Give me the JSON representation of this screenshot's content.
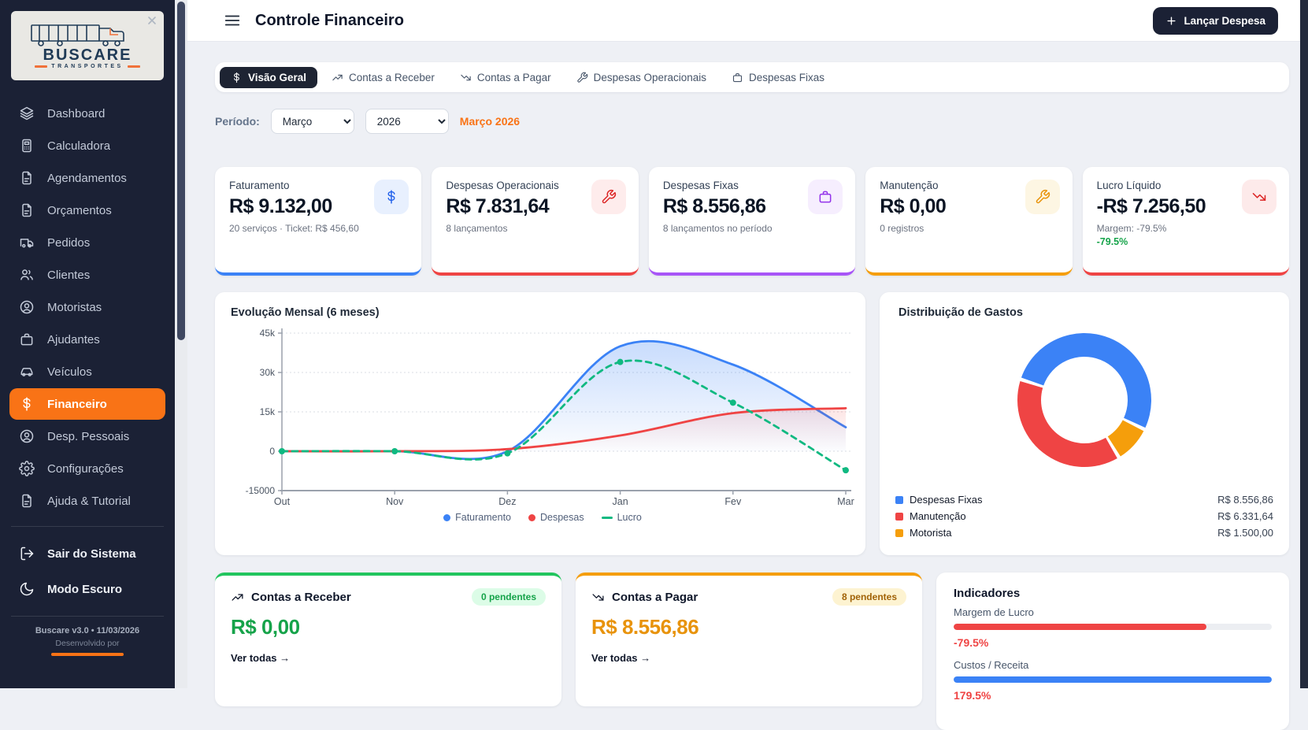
{
  "app": {
    "title": "Controle Financeiro",
    "action_button": "Lançar Despesa"
  },
  "sidebar": {
    "logo_title": "BUSCARE",
    "logo_subtitle": "TRANSPORTES",
    "items": [
      {
        "label": "Dashboard",
        "icon": "layers"
      },
      {
        "label": "Calculadora",
        "icon": "calculator"
      },
      {
        "label": "Agendamentos",
        "icon": "file"
      },
      {
        "label": "Orçamentos",
        "icon": "file"
      },
      {
        "label": "Pedidos",
        "icon": "van"
      },
      {
        "label": "Clientes",
        "icon": "users"
      },
      {
        "label": "Motoristas",
        "icon": "user-circle"
      },
      {
        "label": "Ajudantes",
        "icon": "briefcase"
      },
      {
        "label": "Veículos",
        "icon": "car"
      },
      {
        "label": "Financeiro",
        "icon": "dollar",
        "active": true
      },
      {
        "label": "Desp. Pessoais",
        "icon": "user-circle"
      },
      {
        "label": "Configurações",
        "icon": "gear"
      },
      {
        "label": "Ajuda & Tutorial",
        "icon": "file"
      }
    ],
    "footer_items": [
      {
        "label": "Sair do Sistema",
        "icon": "logout"
      },
      {
        "label": "Modo Escuro",
        "icon": "moon"
      }
    ],
    "version": "Buscare v3.0 • 11/03/2026",
    "developed_by": "Desenvolvido por"
  },
  "tabs": [
    {
      "label": "Visão Geral",
      "icon": "dollar",
      "active": true
    },
    {
      "label": "Contas a Receber",
      "icon": "trend-up"
    },
    {
      "label": "Contas a Pagar",
      "icon": "trend-down"
    },
    {
      "label": "Despesas Operacionais",
      "icon": "wrench"
    },
    {
      "label": "Despesas Fixas",
      "icon": "briefcase"
    }
  ],
  "period": {
    "label": "Período:",
    "month": "Março",
    "month_options": [
      "Março"
    ],
    "year": "2026",
    "year_options": [
      "2026"
    ],
    "display": "Março 2026"
  },
  "stat_cards": [
    {
      "label": "Faturamento",
      "value": "R$ 9.132,00",
      "sub": "20 serviços · Ticket: R$ 456,60",
      "icon": "dollar",
      "accent": "#3b82f6",
      "icon_bg": "#e8f0fe",
      "icon_color": "#2563eb"
    },
    {
      "label": "Despesas Operacionais",
      "value": "R$ 7.831,64",
      "sub": "8 lançamentos",
      "icon": "wrench",
      "accent": "#ef4444",
      "icon_bg": "#feecec",
      "icon_color": "#dc2626"
    },
    {
      "label": "Despesas Fixas",
      "value": "R$ 8.556,86",
      "sub": "8 lançamentos no período",
      "icon": "briefcase",
      "accent": "#a855f7",
      "icon_bg": "#f6eefe",
      "icon_color": "#9333ea"
    },
    {
      "label": "Manutenção",
      "value": "R$ 0,00",
      "sub": "0 registros",
      "icon": "wrench",
      "accent": "#f59e0b",
      "icon_bg": "#fdf6e3",
      "icon_color": "#e8930c"
    },
    {
      "label": "Lucro Líquido",
      "value": "-R$ 7.256,50",
      "sub": "Margem: -79.5%",
      "sub2": "-79.5%",
      "sub2_color": "#16a34a",
      "icon": "trend-down",
      "accent": "#ef4444",
      "icon_bg": "#fdeaea",
      "icon_color": "#dc2626"
    }
  ],
  "chart_data": [
    {
      "type": "line",
      "title": "Evolução Mensal (6 meses)",
      "categories": [
        "Out",
        "Nov",
        "Dez",
        "Jan",
        "Fev",
        "Mar"
      ],
      "series": [
        {
          "name": "Faturamento",
          "color": "#3b82f6",
          "style": "solid",
          "fill": true,
          "values": [
            0,
            0,
            0,
            40000,
            33000,
            9132
          ]
        },
        {
          "name": "Despesas",
          "color": "#ef4444",
          "style": "solid",
          "fill": true,
          "values": [
            0,
            0,
            800,
            6000,
            14500,
            16388
          ]
        },
        {
          "name": "Lucro",
          "color": "#10b981",
          "style": "dashed",
          "points": true,
          "values": [
            0,
            0,
            -800,
            34000,
            18500,
            -7256
          ]
        }
      ],
      "ylim": [
        -15000,
        45000
      ],
      "yticks": [
        {
          "v": 45000,
          "label": "45k"
        },
        {
          "v": 30000,
          "label": "30k"
        },
        {
          "v": 15000,
          "label": "15k"
        },
        {
          "v": 0,
          "label": "0"
        },
        {
          "v": -15000,
          "label": "-15000"
        }
      ],
      "grid": true,
      "legend_position": "bottom"
    },
    {
      "type": "pie",
      "title": "Distribuição de Gastos",
      "slices": [
        {
          "label": "Despesas Fixas",
          "value": 8556.86,
          "display": "R$ 8.556,86",
          "color": "#3b82f6"
        },
        {
          "label": "Manutenção",
          "value": 6331.64,
          "display": "R$ 6.331,64",
          "color": "#ef4444"
        },
        {
          "label": "Motorista",
          "value": 1500.0,
          "display": "R$ 1.500,00",
          "color": "#f59e0b"
        }
      ],
      "donut": true,
      "start_angle": 288,
      "clockwise_order": [
        0,
        2,
        1
      ],
      "legend_position": "bottom-list"
    }
  ],
  "accounts": [
    {
      "title": "Contas a Receber",
      "icon": "trend-up",
      "badge": "0 pendentes",
      "badge_bg": "#dcfce7",
      "badge_color": "#16a34a",
      "value": "R$ 0,00",
      "value_color": "#16a34a",
      "link": "Ver todas →",
      "accent": "#22c55e"
    },
    {
      "title": "Contas a Pagar",
      "icon": "trend-down",
      "badge": "8 pendentes",
      "badge_bg": "#fdf3d1",
      "badge_color": "#a16207",
      "value": "R$ 8.556,86",
      "value_color": "#e8930c",
      "link": "Ver todas →",
      "accent": "#f59e0b"
    }
  ],
  "indicators": {
    "title": "Indicadores",
    "rows": [
      {
        "label": "Margem de Lucro",
        "value": "-79.5%",
        "pct": 79.5,
        "bar_color": "#ef4444",
        "value_color": "#ef4444"
      },
      {
        "label": "Custos / Receita",
        "value": "179.5%",
        "pct": 100,
        "bar_color": "#3b82f6",
        "value_color": "#ef4444"
      }
    ]
  }
}
